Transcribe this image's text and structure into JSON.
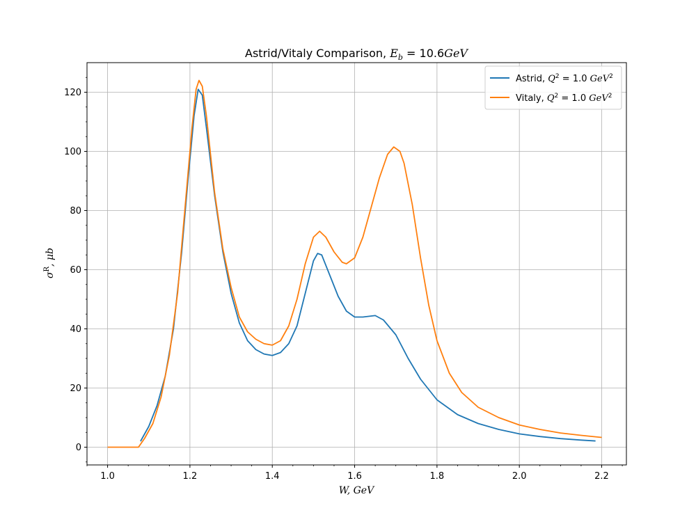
{
  "chart_data": {
    "type": "line",
    "title_prefix": "Astrid/Vitaly Comparison, ",
    "title_math_var": "E",
    "title_math_sub": "b",
    "title_math_rest": " = 10.6",
    "title_math_unit": "GeV",
    "xlabel": "W, GeV",
    "ylabel_symbol": "σ",
    "ylabel_sup": "R",
    "ylabel_rest": ", μb",
    "xlim": [
      0.95,
      2.26
    ],
    "ylim": [
      -6,
      130
    ],
    "x_ticks": [
      1.0,
      1.2,
      1.4,
      1.6,
      1.8,
      2.0,
      2.2
    ],
    "x_tick_labels": [
      "1.0",
      "1.2",
      "1.4",
      "1.6",
      "1.8",
      "2.0",
      "2.2"
    ],
    "y_ticks": [
      0,
      20,
      40,
      60,
      80,
      100,
      120
    ],
    "y_tick_labels": [
      "0",
      "20",
      "40",
      "60",
      "80",
      "100",
      "120"
    ],
    "grid": true,
    "legend_position": "top-right",
    "series": [
      {
        "name": "Astrid",
        "legend_text": "Astrid, ",
        "legend_math": "Q",
        "legend_sup": "2",
        "legend_rest": " = 1.0 ",
        "legend_unit": "GeV",
        "legend_unit_sup": "2",
        "color": "#1f77b4",
        "points": [
          [
            1.08,
            2.0
          ],
          [
            1.1,
            7.0
          ],
          [
            1.12,
            14.0
          ],
          [
            1.14,
            24.0
          ],
          [
            1.16,
            40.0
          ],
          [
            1.18,
            66.0
          ],
          [
            1.195,
            90.0
          ],
          [
            1.21,
            112.0
          ],
          [
            1.22,
            121.0
          ],
          [
            1.23,
            119.0
          ],
          [
            1.24,
            108.0
          ],
          [
            1.26,
            85.0
          ],
          [
            1.28,
            66.0
          ],
          [
            1.3,
            52.0
          ],
          [
            1.32,
            42.0
          ],
          [
            1.34,
            36.0
          ],
          [
            1.36,
            33.0
          ],
          [
            1.38,
            31.5
          ],
          [
            1.4,
            31.0
          ],
          [
            1.42,
            32.0
          ],
          [
            1.44,
            35.0
          ],
          [
            1.46,
            41.0
          ],
          [
            1.48,
            52.0
          ],
          [
            1.5,
            63.0
          ],
          [
            1.51,
            65.5
          ],
          [
            1.52,
            65.0
          ],
          [
            1.54,
            58.0
          ],
          [
            1.56,
            51.0
          ],
          [
            1.58,
            46.0
          ],
          [
            1.6,
            44.0
          ],
          [
            1.62,
            44.0
          ],
          [
            1.65,
            44.5
          ],
          [
            1.67,
            43.0
          ],
          [
            1.7,
            38.0
          ],
          [
            1.73,
            30.0
          ],
          [
            1.76,
            23.0
          ],
          [
            1.8,
            16.0
          ],
          [
            1.85,
            11.0
          ],
          [
            1.9,
            8.0
          ],
          [
            1.95,
            6.0
          ],
          [
            2.0,
            4.5
          ],
          [
            2.05,
            3.6
          ],
          [
            2.1,
            2.9
          ],
          [
            2.15,
            2.4
          ],
          [
            2.185,
            2.1
          ]
        ]
      },
      {
        "name": "Vitaly",
        "legend_text": "Vitaly, ",
        "legend_math": "Q",
        "legend_sup": "2",
        "legend_rest": " = 1.0 ",
        "legend_unit": "GeV",
        "legend_unit_sup": "2",
        "color": "#ff7f0e",
        "points": [
          [
            1.0,
            0.0
          ],
          [
            1.02,
            0.0
          ],
          [
            1.04,
            0.0
          ],
          [
            1.06,
            0.0
          ],
          [
            1.075,
            0.0
          ],
          [
            1.09,
            3.0
          ],
          [
            1.11,
            8.0
          ],
          [
            1.13,
            17.0
          ],
          [
            1.15,
            31.0
          ],
          [
            1.17,
            52.0
          ],
          [
            1.19,
            84.0
          ],
          [
            1.205,
            108.0
          ],
          [
            1.215,
            121.0
          ],
          [
            1.222,
            124.0
          ],
          [
            1.23,
            122.0
          ],
          [
            1.24,
            112.0
          ],
          [
            1.26,
            86.0
          ],
          [
            1.28,
            67.0
          ],
          [
            1.3,
            54.0
          ],
          [
            1.32,
            44.0
          ],
          [
            1.34,
            39.0
          ],
          [
            1.36,
            36.5
          ],
          [
            1.38,
            35.0
          ],
          [
            1.4,
            34.5
          ],
          [
            1.42,
            36.0
          ],
          [
            1.44,
            41.0
          ],
          [
            1.46,
            50.0
          ],
          [
            1.48,
            62.0
          ],
          [
            1.5,
            71.0
          ],
          [
            1.515,
            73.0
          ],
          [
            1.53,
            71.0
          ],
          [
            1.55,
            66.0
          ],
          [
            1.57,
            62.5
          ],
          [
            1.58,
            62.0
          ],
          [
            1.6,
            64.0
          ],
          [
            1.62,
            71.0
          ],
          [
            1.64,
            81.0
          ],
          [
            1.66,
            91.0
          ],
          [
            1.68,
            99.0
          ],
          [
            1.695,
            101.5
          ],
          [
            1.71,
            100.0
          ],
          [
            1.72,
            96.0
          ],
          [
            1.74,
            82.0
          ],
          [
            1.76,
            64.0
          ],
          [
            1.78,
            48.0
          ],
          [
            1.8,
            36.0
          ],
          [
            1.83,
            25.0
          ],
          [
            1.86,
            18.5
          ],
          [
            1.9,
            13.5
          ],
          [
            1.95,
            10.0
          ],
          [
            2.0,
            7.5
          ],
          [
            2.05,
            6.0
          ],
          [
            2.1,
            4.8
          ],
          [
            2.15,
            4.0
          ],
          [
            2.2,
            3.3
          ]
        ]
      }
    ]
  }
}
